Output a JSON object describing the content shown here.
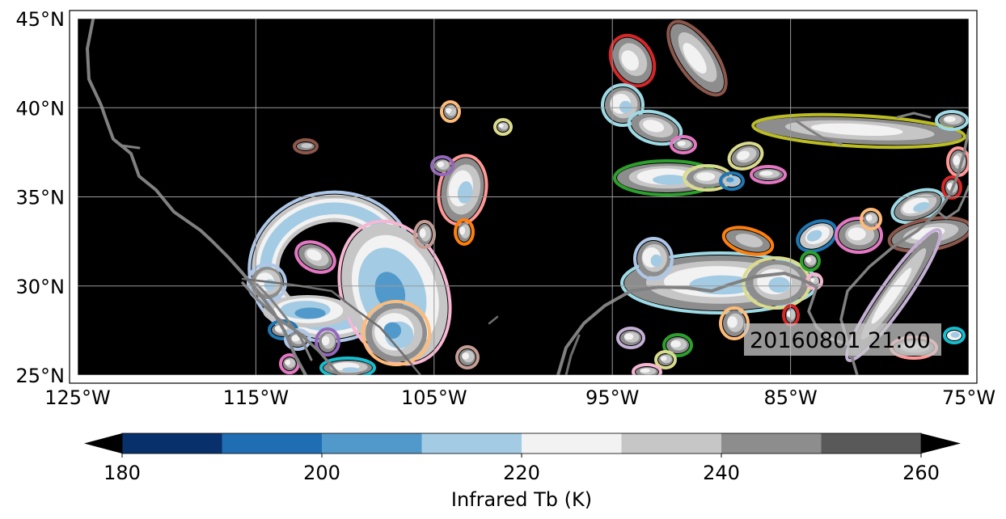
{
  "map": {
    "timestamp": "20160801 21:00",
    "extent": {
      "lon": [
        -125,
        -75
      ],
      "lat": [
        25,
        45
      ]
    },
    "x_ticks": [
      {
        "lon": -125,
        "label": "125°W"
      },
      {
        "lon": -115,
        "label": "115°W"
      },
      {
        "lon": -105,
        "label": "105°W"
      },
      {
        "lon": -95,
        "label": "95°W"
      },
      {
        "lon": -85,
        "label": "85°W"
      },
      {
        "lon": -75,
        "label": "75°W"
      }
    ],
    "y_ticks": [
      {
        "lat": 45,
        "label": "45°N"
      },
      {
        "lat": 40,
        "label": "40°N"
      },
      {
        "lat": 35,
        "label": "35°N"
      },
      {
        "lat": 30,
        "label": "30°N"
      },
      {
        "lat": 25,
        "label": "25°N"
      }
    ],
    "gridlines": true,
    "background_color": "#000000",
    "coastline_color": "#808080"
  },
  "colorbar": {
    "label": "Infrared Tb (K)",
    "range": [
      180,
      260
    ],
    "bins": [
      {
        "from": 180,
        "to": 190,
        "color": "#08306b"
      },
      {
        "from": 190,
        "to": 200,
        "color": "#1f6db3"
      },
      {
        "from": 200,
        "to": 210,
        "color": "#5299cb"
      },
      {
        "from": 210,
        "to": 220,
        "color": "#a3cbe3"
      },
      {
        "from": 220,
        "to": 230,
        "color": "#f2f2f2"
      },
      {
        "from": 230,
        "to": 240,
        "color": "#c6c6c6"
      },
      {
        "from": 240,
        "to": 250,
        "color": "#8d8d8d"
      },
      {
        "from": 250,
        "to": 260,
        "color": "#595959"
      }
    ],
    "extend_color": "#000000",
    "ticks": [
      {
        "value": 180,
        "label": "180"
      },
      {
        "value": 200,
        "label": "200"
      },
      {
        "value": 220,
        "label": "220"
      },
      {
        "value": 240,
        "label": "240"
      },
      {
        "value": 260,
        "label": "260"
      }
    ]
  },
  "storm_outline_colors": [
    "#d62728",
    "#8c564b",
    "#e377c2",
    "#1f77b4",
    "#2ca02c",
    "#bcbd22",
    "#17becf",
    "#ff7f0e",
    "#9467bd",
    "#aec7e8",
    "#ffbb78",
    "#ff9896",
    "#c5b0d5",
    "#c49c94",
    "#dbdb8d",
    "#9edae5",
    "#f7b6d2"
  ]
}
